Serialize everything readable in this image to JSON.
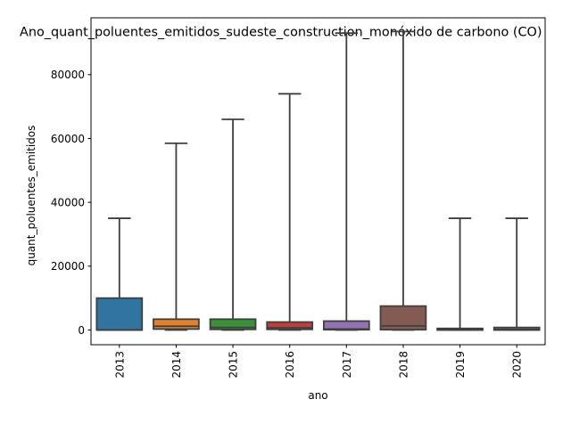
{
  "chart_data": {
    "type": "box",
    "title": "Ano_quant_poluentes_emitidos_sudeste_construction_monóxido de carbono (CO)",
    "xlabel": "ano",
    "ylabel": "quant_poluentes_emitidos",
    "ylim": [
      -4600,
      97800
    ],
    "yticks": [
      0,
      20000,
      40000,
      60000,
      80000
    ],
    "ytick_labels": [
      "0",
      "20000",
      "40000",
      "60000",
      "80000"
    ],
    "grid": false,
    "showfliers": false,
    "categories": [
      "2013",
      "2014",
      "2015",
      "2016",
      "2017",
      "2018",
      "2019",
      "2020"
    ],
    "colors": [
      "#3274a1",
      "#e1812c",
      "#3a923a",
      "#c03d3e",
      "#9372b2",
      "#845b53",
      "#d684bd",
      "#7f7f7f"
    ],
    "boxes": [
      {
        "category": "2013",
        "whislo": 0,
        "q1": 0,
        "med": 0,
        "q3": 10000,
        "whishi": 35000
      },
      {
        "category": "2014",
        "whislo": 0,
        "q1": 300,
        "med": 1200,
        "q3": 3400,
        "whishi": 58500
      },
      {
        "category": "2015",
        "whislo": 0,
        "q1": 200,
        "med": 800,
        "q3": 3400,
        "whishi": 66000
      },
      {
        "category": "2016",
        "whislo": 0,
        "q1": 200,
        "med": 700,
        "q3": 2500,
        "whishi": 74000
      },
      {
        "category": "2017",
        "whislo": 0,
        "q1": 100,
        "med": 300,
        "q3": 2800,
        "whishi": 93000
      },
      {
        "category": "2018",
        "whislo": 0,
        "q1": 100,
        "med": 1300,
        "q3": 7500,
        "whishi": 93500
      },
      {
        "category": "2019",
        "whislo": 0,
        "q1": 0,
        "med": 50,
        "q3": 500,
        "whishi": 35000
      },
      {
        "category": "2020",
        "whislo": 0,
        "q1": 0,
        "med": 200,
        "q3": 800,
        "whishi": 35000
      }
    ]
  }
}
